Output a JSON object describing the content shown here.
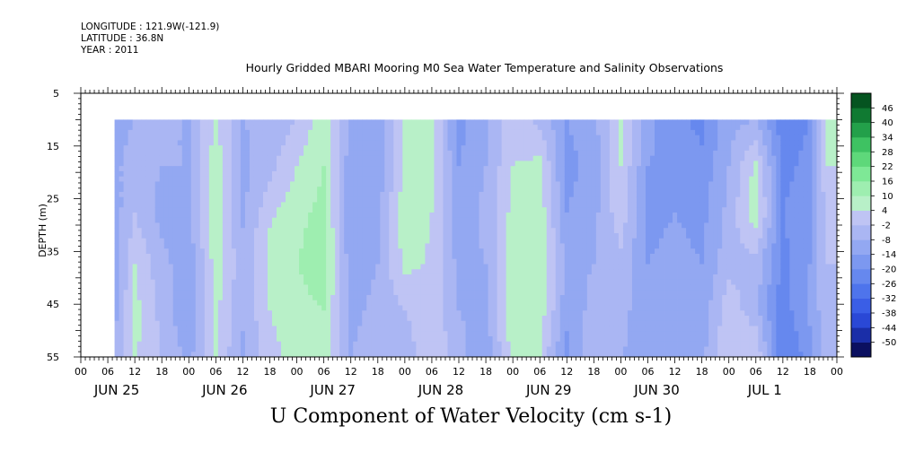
{
  "header": {
    "longitude": "LONGITUDE : 121.9W(-121.9)",
    "latitude": "LATITUDE : 36.8N",
    "year": "YEAR : 2011"
  },
  "chart_data": {
    "type": "heatmap",
    "title": "Hourly Gridded MBARI Mooring M0 Sea Water Temperature and Salinity Observations",
    "footer_label": "U Component of Water Velocity (cm s-1)",
    "ylabel": "DEPTH (m)",
    "y_axis": {
      "range": [
        5,
        55
      ],
      "inverted": true,
      "ticks": [
        5,
        15,
        25,
        35,
        45,
        55
      ]
    },
    "x_axis": {
      "hour_ticks": [
        "00",
        "06",
        "12",
        "18",
        "00",
        "06",
        "12",
        "18",
        "00",
        "06",
        "12",
        "18",
        "00",
        "06",
        "12",
        "18",
        "00",
        "06",
        "12",
        "18",
        "00",
        "06",
        "12",
        "18",
        "00",
        "06",
        "12",
        "18",
        "00"
      ],
      "day_labels": [
        "JUN 25",
        "JUN 26",
        "JUN 27",
        "JUN 28",
        "JUN 29",
        "JUN 30",
        "JUL  1"
      ]
    },
    "data_depth_range": [
      10,
      55
    ],
    "data_time_start_hour": 7.5,
    "colorbar": {
      "levels": [
        -50,
        -44,
        -38,
        -32,
        -26,
        -20,
        -14,
        -8,
        -2,
        4,
        10,
        16,
        22,
        28,
        34,
        40,
        46
      ],
      "colors": [
        "#0b1060",
        "#1a2ea8",
        "#2a48d6",
        "#3a5ee6",
        "#4e74ec",
        "#6688ee",
        "#7c98f0",
        "#93a8f2",
        "#aab6f3",
        "#bfc4f4",
        "#b8f0c8",
        "#9eeeb0",
        "#7ee896",
        "#5ed87a",
        "#3ec262",
        "#23a04a",
        "#107a32",
        "#055420"
      ]
    },
    "profile_columns": [
      {
        "t": 7.5,
        "u": [
          -10,
          -9,
          -11,
          -12,
          -10,
          -9
        ]
      },
      {
        "t": 12,
        "u": [
          -8,
          -6,
          -2,
          4,
          6,
          5
        ]
      },
      {
        "t": 18,
        "u": [
          -6,
          -8,
          -10,
          -6,
          -4,
          -2
        ]
      },
      {
        "t": 24,
        "u": [
          -9,
          -8,
          -10,
          -12,
          -14,
          -10
        ]
      },
      {
        "t": 30,
        "u": [
          5,
          8,
          9,
          7,
          6,
          4
        ]
      },
      {
        "t": 36,
        "u": [
          -8,
          -10,
          -9,
          -6,
          -7,
          -9
        ]
      },
      {
        "t": 42,
        "u": [
          -6,
          -4,
          3,
          6,
          4,
          2
        ]
      },
      {
        "t": 48,
        "u": [
          -2,
          4,
          8,
          10,
          8,
          6
        ]
      },
      {
        "t": 54,
        "u": [
          8,
          10,
          12,
          14,
          10,
          8
        ]
      },
      {
        "t": 60,
        "u": [
          -10,
          -12,
          -14,
          -12,
          -10,
          -8
        ]
      },
      {
        "t": 66,
        "u": [
          -14,
          -12,
          -10,
          -8,
          -6,
          -4
        ]
      },
      {
        "t": 72,
        "u": [
          4,
          6,
          8,
          6,
          -2,
          -6
        ]
      },
      {
        "t": 78,
        "u": [
          6,
          5,
          4,
          3,
          2,
          4
        ]
      },
      {
        "t": 84,
        "u": [
          -16,
          -14,
          -12,
          -10,
          -8,
          -6
        ]
      },
      {
        "t": 90,
        "u": [
          -10,
          -8,
          -6,
          -8,
          -10,
          -12
        ]
      },
      {
        "t": 96,
        "u": [
          2,
          4,
          6,
          8,
          10,
          6
        ]
      },
      {
        "t": 102,
        "u": [
          -4,
          6,
          8,
          10,
          8,
          4
        ]
      },
      {
        "t": 108,
        "u": [
          -14,
          -16,
          -14,
          -10,
          -12,
          -16
        ]
      },
      {
        "t": 114,
        "u": [
          -10,
          -12,
          -10,
          -8,
          -6,
          -4
        ]
      },
      {
        "t": 120,
        "u": [
          6,
          4,
          2,
          -4,
          -6,
          -8
        ]
      },
      {
        "t": 126,
        "u": [
          -12,
          -14,
          -16,
          -14,
          -12,
          -10
        ]
      },
      {
        "t": 132,
        "u": [
          -18,
          -16,
          -14,
          -12,
          -10,
          -8
        ]
      },
      {
        "t": 138,
        "u": [
          -22,
          -18,
          -16,
          -14,
          -12,
          -10
        ]
      },
      {
        "t": 144,
        "u": [
          -10,
          -8,
          -6,
          -4,
          2,
          4
        ]
      },
      {
        "t": 150,
        "u": [
          -8,
          6,
          8,
          -4,
          -6,
          4
        ]
      },
      {
        "t": 156,
        "u": [
          -24,
          -22,
          -20,
          -22,
          -24,
          -26
        ]
      },
      {
        "t": 162,
        "u": [
          -20,
          -18,
          -16,
          -14,
          -12,
          -18
        ]
      },
      {
        "t": 166,
        "u": [
          6,
          4,
          2,
          -2,
          -4,
          -2
        ]
      }
    ]
  }
}
